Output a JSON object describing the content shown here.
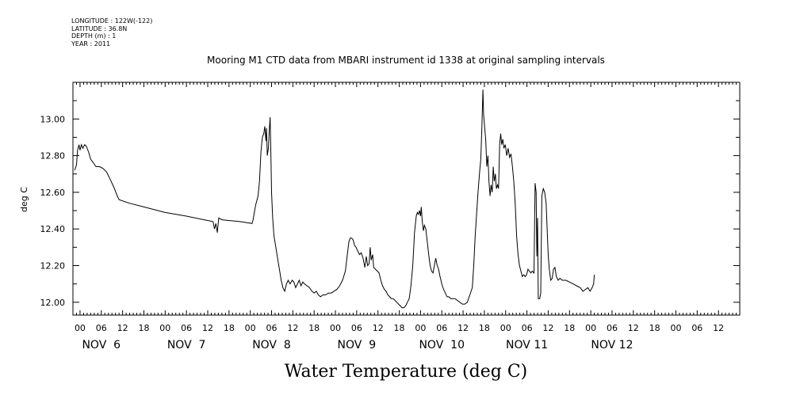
{
  "metadata": {
    "longitude": "LONGITUDE : 122W(-122)",
    "latitude": "LATITUDE : 36.8N",
    "depth": "DEPTH (m) : 1",
    "year": "YEAR : 2011"
  },
  "chart_data": {
    "type": "line",
    "title": "Mooring M1 CTD data from MBARI instrument id 1338 at original sampling intervals",
    "xlabel": "Water Temperature (deg C)",
    "ylabel": "deg C",
    "x_unit": "hours since Nov 6 00:00, 2011",
    "xlim": [
      -2,
      186
    ],
    "ylim": [
      11.93,
      13.2
    ],
    "grid": false,
    "y_ticks": [
      12.0,
      12.2,
      12.4,
      12.6,
      12.8,
      13.0
    ],
    "y_tick_labels": [
      "12.00",
      "12.20",
      "12.40",
      "12.60",
      "12.80",
      "13.00"
    ],
    "x_hour_ticks": [
      0,
      6,
      12,
      18,
      24,
      30,
      36,
      42,
      48,
      54,
      60,
      66,
      72,
      78,
      84,
      90,
      96,
      102,
      108,
      114,
      120,
      126,
      132,
      138,
      144,
      150,
      156,
      162,
      168,
      174,
      180
    ],
    "x_hour_labels": [
      "00",
      "06",
      "12",
      "18",
      "00",
      "06",
      "12",
      "18",
      "00",
      "06",
      "12",
      "18",
      "00",
      "06",
      "12",
      "18",
      "00",
      "06",
      "12",
      "18",
      "00",
      "06",
      "12",
      "18",
      "00",
      "06",
      "12",
      "18",
      "00",
      "06",
      "12"
    ],
    "day_label_positions": [
      6,
      30,
      54,
      78,
      102,
      126,
      150
    ],
    "day_labels": [
      "NOV  6",
      "NOV  7",
      "NOV  8",
      "NOV  9",
      "NOV  10",
      "NOV 11",
      "NOV 12"
    ],
    "series": [
      {
        "color": "#000000",
        "points": [
          [
            -1.5,
            12.72
          ],
          [
            -1.0,
            12.75
          ],
          [
            -0.7,
            12.83
          ],
          [
            -0.3,
            12.86
          ],
          [
            0.0,
            12.83
          ],
          [
            0.4,
            12.86
          ],
          [
            0.8,
            12.84
          ],
          [
            1.3,
            12.86
          ],
          [
            1.8,
            12.85
          ],
          [
            2.4,
            12.82
          ],
          [
            3.0,
            12.78
          ],
          [
            3.8,
            12.76
          ],
          [
            4.5,
            12.74
          ],
          [
            5.5,
            12.74
          ],
          [
            6.5,
            12.73
          ],
          [
            7.5,
            12.71
          ],
          [
            8.5,
            12.67
          ],
          [
            9.5,
            12.63
          ],
          [
            10.5,
            12.58
          ],
          [
            11.0,
            12.56
          ],
          [
            14.0,
            12.54
          ],
          [
            18.0,
            12.52
          ],
          [
            24.0,
            12.49
          ],
          [
            30.0,
            12.47
          ],
          [
            35.0,
            12.45
          ],
          [
            37.5,
            12.44
          ],
          [
            37.9,
            12.4
          ],
          [
            38.3,
            12.43
          ],
          [
            38.7,
            12.38
          ],
          [
            39.1,
            12.46
          ],
          [
            40.0,
            12.45
          ],
          [
            45.0,
            12.44
          ],
          [
            48.5,
            12.43
          ],
          [
            48.8,
            12.45
          ],
          [
            49.5,
            12.53
          ],
          [
            50.2,
            12.58
          ],
          [
            50.6,
            12.66
          ],
          [
            51.0,
            12.82
          ],
          [
            51.4,
            12.9
          ],
          [
            51.8,
            12.92
          ],
          [
            52.1,
            12.96
          ],
          [
            52.4,
            12.88
          ],
          [
            52.6,
            12.95
          ],
          [
            52.8,
            12.8
          ],
          [
            53.1,
            12.84
          ],
          [
            53.4,
            12.95
          ],
          [
            53.6,
            13.01
          ],
          [
            53.8,
            12.82
          ],
          [
            54.0,
            12.6
          ],
          [
            54.3,
            12.46
          ],
          [
            54.7,
            12.36
          ],
          [
            55.2,
            12.3
          ],
          [
            55.7,
            12.24
          ],
          [
            56.2,
            12.18
          ],
          [
            56.7,
            12.12
          ],
          [
            57.2,
            12.08
          ],
          [
            57.7,
            12.06
          ],
          [
            58.2,
            12.1
          ],
          [
            58.7,
            12.12
          ],
          [
            59.2,
            12.1
          ],
          [
            59.8,
            12.12
          ],
          [
            60.3,
            12.11
          ],
          [
            60.8,
            12.08
          ],
          [
            61.3,
            12.1
          ],
          [
            61.8,
            12.12
          ],
          [
            62.3,
            12.09
          ],
          [
            62.8,
            12.11
          ],
          [
            63.3,
            12.1
          ],
          [
            64.0,
            12.09
          ],
          [
            64.7,
            12.08
          ],
          [
            65.4,
            12.06
          ],
          [
            66.0,
            12.05
          ],
          [
            66.6,
            12.06
          ],
          [
            67.2,
            12.04
          ],
          [
            67.8,
            12.03
          ],
          [
            68.5,
            12.04
          ],
          [
            69.2,
            12.04
          ],
          [
            70.0,
            12.05
          ],
          [
            70.8,
            12.05
          ],
          [
            71.6,
            12.06
          ],
          [
            72.4,
            12.07
          ],
          [
            73.2,
            12.09
          ],
          [
            74.0,
            12.12
          ],
          [
            74.8,
            12.17
          ],
          [
            75.3,
            12.25
          ],
          [
            75.8,
            12.33
          ],
          [
            76.2,
            12.35
          ],
          [
            76.6,
            12.35
          ],
          [
            77.0,
            12.34
          ],
          [
            77.4,
            12.31
          ],
          [
            77.8,
            12.3
          ],
          [
            78.3,
            12.28
          ],
          [
            78.8,
            12.26
          ],
          [
            79.3,
            12.27
          ],
          [
            79.8,
            12.24
          ],
          [
            80.3,
            12.19
          ],
          [
            80.7,
            12.25
          ],
          [
            81.1,
            12.2
          ],
          [
            81.5,
            12.21
          ],
          [
            81.8,
            12.3
          ],
          [
            82.1,
            12.23
          ],
          [
            82.5,
            12.26
          ],
          [
            82.8,
            12.19
          ],
          [
            83.3,
            12.18
          ],
          [
            83.8,
            12.17
          ],
          [
            84.3,
            12.16
          ],
          [
            84.8,
            12.12
          ],
          [
            85.3,
            12.09
          ],
          [
            85.8,
            12.07
          ],
          [
            86.3,
            12.06
          ],
          [
            86.8,
            12.04
          ],
          [
            87.3,
            12.03
          ],
          [
            87.8,
            12.02
          ],
          [
            88.3,
            12.02
          ],
          [
            88.8,
            12.01
          ],
          [
            89.3,
            12.0
          ],
          [
            89.8,
            11.99
          ],
          [
            90.3,
            11.98
          ],
          [
            90.8,
            11.97
          ],
          [
            91.3,
            11.97
          ],
          [
            91.8,
            11.98
          ],
          [
            92.3,
            12.0
          ],
          [
            92.8,
            12.02
          ],
          [
            93.3,
            12.09
          ],
          [
            93.8,
            12.2
          ],
          [
            94.3,
            12.38
          ],
          [
            94.8,
            12.47
          ],
          [
            95.1,
            12.49
          ],
          [
            95.4,
            12.48
          ],
          [
            95.7,
            12.5
          ],
          [
            96.0,
            12.47
          ],
          [
            96.2,
            12.52
          ],
          [
            96.5,
            12.44
          ],
          [
            96.8,
            12.39
          ],
          [
            97.1,
            12.42
          ],
          [
            97.5,
            12.4
          ],
          [
            97.9,
            12.33
          ],
          [
            98.3,
            12.26
          ],
          [
            98.7,
            12.2
          ],
          [
            99.1,
            12.17
          ],
          [
            99.5,
            12.16
          ],
          [
            99.9,
            12.2
          ],
          [
            100.3,
            12.24
          ],
          [
            100.7,
            12.2
          ],
          [
            101.1,
            12.18
          ],
          [
            101.5,
            12.14
          ],
          [
            102.0,
            12.1
          ],
          [
            102.5,
            12.07
          ],
          [
            103.0,
            12.05
          ],
          [
            103.5,
            12.03
          ],
          [
            104.0,
            12.03
          ],
          [
            104.5,
            12.02
          ],
          [
            105.0,
            12.02
          ],
          [
            105.7,
            12.02
          ],
          [
            106.4,
            12.01
          ],
          [
            107.1,
            12.0
          ],
          [
            107.8,
            11.99
          ],
          [
            108.5,
            11.99
          ],
          [
            109.2,
            12.0
          ],
          [
            109.9,
            12.04
          ],
          [
            110.6,
            12.08
          ],
          [
            111.0,
            12.2
          ],
          [
            111.4,
            12.36
          ],
          [
            111.8,
            12.48
          ],
          [
            112.2,
            12.6
          ],
          [
            112.6,
            12.7
          ],
          [
            113.0,
            12.78
          ],
          [
            113.3,
            12.96
          ],
          [
            113.6,
            13.16
          ],
          [
            113.8,
            13.02
          ],
          [
            114.1,
            12.95
          ],
          [
            114.4,
            12.88
          ],
          [
            114.7,
            12.74
          ],
          [
            115.0,
            12.8
          ],
          [
            115.3,
            12.66
          ],
          [
            115.6,
            12.58
          ],
          [
            115.9,
            12.64
          ],
          [
            116.2,
            12.6
          ],
          [
            116.5,
            12.74
          ],
          [
            116.8,
            12.66
          ],
          [
            117.1,
            12.7
          ],
          [
            117.4,
            12.62
          ],
          [
            117.7,
            12.64
          ],
          [
            118.0,
            12.62
          ],
          [
            118.3,
            12.86
          ],
          [
            118.6,
            12.92
          ],
          [
            118.9,
            12.86
          ],
          [
            119.2,
            12.89
          ],
          [
            119.5,
            12.84
          ],
          [
            119.9,
            12.86
          ],
          [
            120.3,
            12.8
          ],
          [
            120.7,
            12.84
          ],
          [
            121.1,
            12.79
          ],
          [
            121.5,
            12.81
          ],
          [
            121.9,
            12.74
          ],
          [
            122.3,
            12.66
          ],
          [
            122.7,
            12.54
          ],
          [
            123.1,
            12.36
          ],
          [
            123.5,
            12.26
          ],
          [
            123.9,
            12.2
          ],
          [
            124.3,
            12.17
          ],
          [
            124.7,
            12.14
          ],
          [
            125.1,
            12.15
          ],
          [
            125.5,
            12.14
          ],
          [
            125.9,
            12.15
          ],
          [
            126.3,
            12.18
          ],
          [
            126.7,
            12.17
          ],
          [
            127.1,
            12.16
          ],
          [
            127.5,
            12.17
          ],
          [
            128.0,
            12.16
          ],
          [
            128.3,
            12.65
          ],
          [
            128.6,
            12.6
          ],
          [
            128.8,
            12.25
          ],
          [
            129.0,
            12.46
          ],
          [
            129.2,
            12.02
          ],
          [
            129.6,
            12.02
          ],
          [
            129.9,
            12.05
          ],
          [
            130.2,
            12.58
          ],
          [
            130.6,
            12.62
          ],
          [
            131.0,
            12.6
          ],
          [
            131.4,
            12.54
          ],
          [
            131.7,
            12.4
          ],
          [
            132.0,
            12.26
          ],
          [
            132.3,
            12.18
          ],
          [
            132.7,
            12.12
          ],
          [
            133.1,
            12.13
          ],
          [
            133.5,
            12.18
          ],
          [
            133.9,
            12.19
          ],
          [
            134.3,
            12.14
          ],
          [
            134.8,
            12.12
          ],
          [
            135.3,
            12.13
          ],
          [
            136.0,
            12.12
          ],
          [
            137.0,
            12.12
          ],
          [
            138.0,
            12.11
          ],
          [
            139.0,
            12.1
          ],
          [
            140.0,
            12.09
          ],
          [
            141.0,
            12.08
          ],
          [
            141.8,
            12.06
          ],
          [
            142.5,
            12.07
          ],
          [
            143.2,
            12.08
          ],
          [
            143.8,
            12.06
          ],
          [
            144.4,
            12.08
          ],
          [
            144.8,
            12.1
          ],
          [
            145.0,
            12.15
          ]
        ]
      }
    ]
  }
}
